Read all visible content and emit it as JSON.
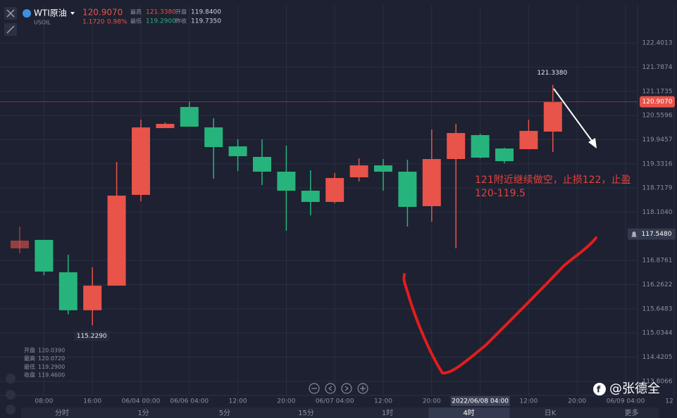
{
  "header": {
    "symbol": "WTI原油",
    "code": "USOIL",
    "price": "120.9070",
    "change": "1.1720",
    "change_pct": "0.98%",
    "stats": [
      {
        "label": "最高",
        "value": "121.3380"
      },
      {
        "label": "开盘",
        "value": "119.8400"
      },
      {
        "label": "最低",
        "value": "119.2900"
      },
      {
        "label": "昨收",
        "value": "119.7350"
      }
    ]
  },
  "chart_data": {
    "type": "candlestick",
    "categories": [
      null,
      "08:00",
      null,
      "16:00",
      null,
      "06/04 00:00",
      null,
      "06/06 04:00",
      null,
      "12:00",
      null,
      "20:00",
      null,
      "06/07 04:00",
      null,
      "12:00",
      null,
      "20:00",
      null,
      "2022/06/08 04:00",
      null,
      "12:00",
      null,
      "20:00",
      null,
      "06/09 04:00",
      null,
      "12"
    ],
    "open": [
      117.184,
      117.399,
      116.577,
      115.612,
      116.237,
      118.542,
      120.239,
      120.775,
      120.257,
      119.775,
      119.507,
      119.132,
      118.649,
      118.363,
      118.989,
      119.292,
      119.132,
      118.256,
      119.453,
      120.061,
      119.721,
      119.703,
      120.15,
      null,
      null,
      null,
      null,
      null
    ],
    "high": [
      117.738,
      117.399,
      117.023,
      116.702,
      119.382,
      120.454,
      120.382,
      120.918,
      120.49,
      119.954,
      119.954,
      119.793,
      119.167,
      119.096,
      119.471,
      119.453,
      119.435,
      120.204,
      120.347,
      120.097,
      119.739,
      120.454,
      121.338,
      null,
      null,
      null,
      null,
      null
    ],
    "low": [
      117.059,
      116.505,
      115.505,
      115.229,
      116.237,
      118.381,
      120.239,
      120.275,
      118.953,
      119.15,
      118.792,
      117.631,
      118.024,
      118.328,
      118.882,
      118.649,
      117.738,
      117.863,
      117.184,
      119.471,
      119.346,
      119.703,
      119.632,
      null,
      null,
      null,
      null,
      null
    ],
    "close": [
      117.381,
      116.595,
      115.612,
      116.237,
      118.524,
      120.257,
      120.347,
      120.275,
      119.757,
      119.525,
      119.132,
      118.649,
      118.363,
      118.971,
      119.292,
      119.132,
      118.238,
      119.453,
      120.114,
      119.489,
      119.4,
      120.168,
      120.907,
      null,
      null,
      null,
      null,
      null
    ],
    "up_color": "#e8534a",
    "down_color": "#27b47c",
    "ylim": [
      113.5,
      123.1
    ],
    "yticks": [
      122.4013,
      121.7874,
      121.1735,
      120.5596,
      119.9457,
      119.3316,
      118.7179,
      {
        "value": 118.104,
        "label": "118.1040"
      },
      116.8761,
      116.2622,
      115.6483,
      115.0344,
      114.4205,
      113.8066
    ],
    "grid": true,
    "last_price": {
      "value": 120.907,
      "label": "120.9070"
    },
    "alert_price": {
      "value": 117.548,
      "label": "117.5480"
    },
    "high_label": {
      "value": 121.338,
      "label": "121.3380"
    },
    "low_label": {
      "value": 115.229,
      "label": "115.2290"
    },
    "annotation": [
      "121附近继续做空，止损122，止盈",
      "120-119.5"
    ]
  },
  "ohlc_info": [
    {
      "label": "开盘",
      "value": "120.0390"
    },
    {
      "label": "最高",
      "value": "120.0720"
    },
    {
      "label": "最低",
      "value": "119.2900"
    },
    {
      "label": "收盘",
      "value": "119.4600"
    }
  ],
  "toolbar": [
    "分时",
    "1分",
    "5分",
    "15分",
    "1时",
    "4时",
    "日K",
    "更多"
  ],
  "watermark": "@张德全"
}
